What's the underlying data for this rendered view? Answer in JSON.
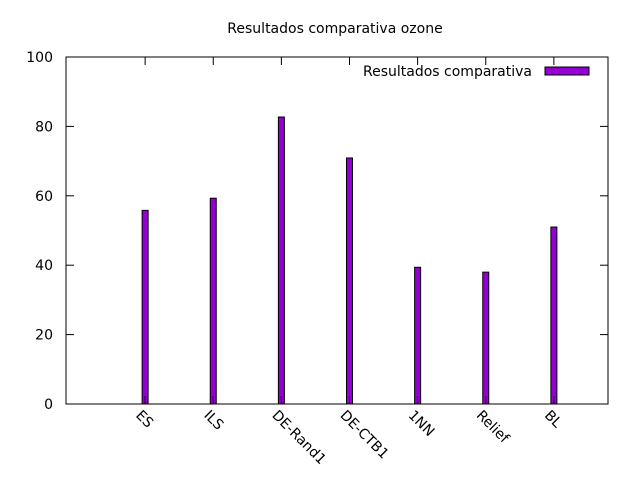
{
  "chart_data": {
    "type": "bar",
    "title": "Resultados comparativa ozone",
    "xlabel": "",
    "ylabel": "",
    "categories": [
      "ES",
      "ILS",
      "DE-Rand1",
      "DE-CTB1",
      "1NN",
      "Relief",
      "BL"
    ],
    "series": [
      {
        "name": "Resultados comparativa",
        "values": [
          55.8,
          59.3,
          82.7,
          70.9,
          39.4,
          38.0,
          51.0
        ],
        "color": "#9400d3"
      }
    ],
    "ylim": [
      0,
      100
    ],
    "yticks": [
      0,
      20,
      40,
      60,
      80,
      100
    ],
    "grid": false,
    "legend_position": "top-right"
  }
}
